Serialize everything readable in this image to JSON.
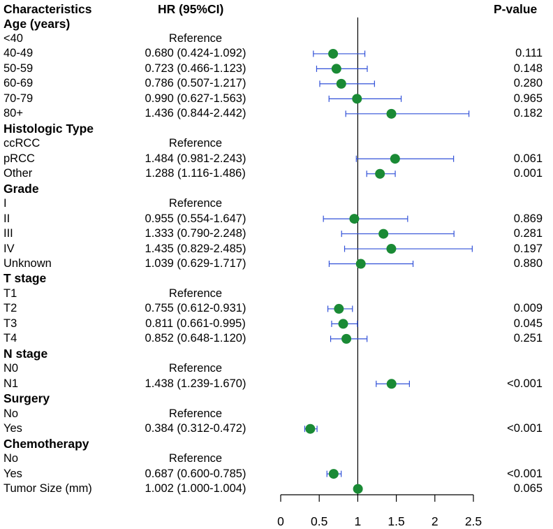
{
  "header": {
    "characteristics": "Characteristics",
    "hr": "HR (95%CI)",
    "pvalue": "P-value"
  },
  "rows": [
    {
      "label": "Age (years)",
      "type": "header"
    },
    {
      "label": "<40",
      "hr_text": "Reference"
    },
    {
      "label": "40-49",
      "hr_text": "0.680 (0.424-1.092)",
      "p": "0.111"
    },
    {
      "label": "50-59",
      "hr_text": "0.723 (0.466-1.123)",
      "p": "0.148"
    },
    {
      "label": "60-69",
      "hr_text": "0.786 (0.507-1.217)",
      "p": "0.280"
    },
    {
      "label": "70-79",
      "hr_text": "0.990 (0.627-1.563)",
      "p": "0.965"
    },
    {
      "label": "80+",
      "hr_text": "1.436 (0.844-2.442)",
      "p": "0.182"
    },
    {
      "label": "Histologic Type",
      "type": "header"
    },
    {
      "label": "ccRCC",
      "hr_text": "Reference"
    },
    {
      "label": "pRCC",
      "hr_text": "1.484 (0.981-2.243)",
      "p": "0.061"
    },
    {
      "label": "Other",
      "hr_text": "1.288 (1.116-1.486)",
      "p": "0.001"
    },
    {
      "label": "Grade",
      "type": "header"
    },
    {
      "label": "I",
      "hr_text": "Reference"
    },
    {
      "label": "II",
      "hr_text": "0.955 (0.554-1.647)",
      "p": "0.869"
    },
    {
      "label": "III",
      "hr_text": "1.333 (0.790-2.248)",
      "p": "0.281"
    },
    {
      "label": "IV",
      "hr_text": "1.435 (0.829-2.485)",
      "p": "0.197"
    },
    {
      "label": "Unknown",
      "hr_text": "1.039 (0.629-1.717)",
      "p": "0.880"
    },
    {
      "label": "T stage",
      "type": "header"
    },
    {
      "label": "T1",
      "hr_text": "Reference"
    },
    {
      "label": "T2",
      "hr_text": "0.755 (0.612-0.931)",
      "p": "0.009"
    },
    {
      "label": "T3",
      "hr_text": "0.811 (0.661-0.995)",
      "p": "0.045"
    },
    {
      "label": "T4",
      "hr_text": "0.852 (0.648-1.120)",
      "p": "0.251"
    },
    {
      "label": "N stage",
      "type": "header"
    },
    {
      "label": "N0",
      "hr_text": "Reference"
    },
    {
      "label": "N1",
      "hr_text": "1.438 (1.239-1.670)",
      "p": "<0.001"
    },
    {
      "label": "Surgery",
      "type": "header"
    },
    {
      "label": "No",
      "hr_text": "Reference"
    },
    {
      "label": "Yes",
      "hr_text": "0.384 (0.312-0.472)",
      "p": "<0.001"
    },
    {
      "label": "Chemotherapy",
      "type": "header"
    },
    {
      "label": "No",
      "hr_text": "Reference"
    },
    {
      "label": "Yes",
      "hr_text": "0.687 (0.600-0.785)",
      "p": "<0.001"
    },
    {
      "label": "Tumor Size (mm)",
      "hr_text": "1.002 (1.000-1.004)",
      "p": "0.065"
    }
  ],
  "colors": {
    "point": "#1a8a35",
    "ci": "#3050d8",
    "axis": "#000000"
  },
  "chart_data": {
    "type": "forest",
    "title": "",
    "xlabel": "",
    "xlim": [
      0,
      2.5
    ],
    "xticks": [
      "0",
      "0.5",
      "1",
      "1.5",
      "2",
      "2.5"
    ],
    "reference_line": 1,
    "points": [
      {
        "row": 2,
        "hr": 0.68,
        "lo": 0.424,
        "hi": 1.092
      },
      {
        "row": 3,
        "hr": 0.723,
        "lo": 0.466,
        "hi": 1.123
      },
      {
        "row": 4,
        "hr": 0.786,
        "lo": 0.507,
        "hi": 1.217
      },
      {
        "row": 5,
        "hr": 0.99,
        "lo": 0.627,
        "hi": 1.563
      },
      {
        "row": 6,
        "hr": 1.436,
        "lo": 0.844,
        "hi": 2.442
      },
      {
        "row": 9,
        "hr": 1.484,
        "lo": 0.981,
        "hi": 2.243
      },
      {
        "row": 10,
        "hr": 1.288,
        "lo": 1.116,
        "hi": 1.486
      },
      {
        "row": 13,
        "hr": 0.955,
        "lo": 0.554,
        "hi": 1.647
      },
      {
        "row": 14,
        "hr": 1.333,
        "lo": 0.79,
        "hi": 2.248
      },
      {
        "row": 15,
        "hr": 1.435,
        "lo": 0.829,
        "hi": 2.485
      },
      {
        "row": 16,
        "hr": 1.039,
        "lo": 0.629,
        "hi": 1.717
      },
      {
        "row": 19,
        "hr": 0.755,
        "lo": 0.612,
        "hi": 0.931
      },
      {
        "row": 20,
        "hr": 0.811,
        "lo": 0.661,
        "hi": 0.995
      },
      {
        "row": 21,
        "hr": 0.852,
        "lo": 0.648,
        "hi": 1.12
      },
      {
        "row": 24,
        "hr": 1.438,
        "lo": 1.239,
        "hi": 1.67
      },
      {
        "row": 27,
        "hr": 0.384,
        "lo": 0.312,
        "hi": 0.472
      },
      {
        "row": 30,
        "hr": 0.687,
        "lo": 0.6,
        "hi": 0.785
      },
      {
        "row": 31,
        "hr": 1.002,
        "lo": 1.0,
        "hi": 1.004
      }
    ]
  }
}
